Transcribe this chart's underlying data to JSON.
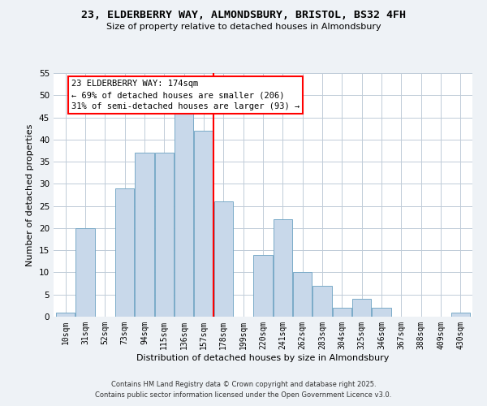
{
  "title": "23, ELDERBERRY WAY, ALMONDSBURY, BRISTOL, BS32 4FH",
  "subtitle": "Size of property relative to detached houses in Almondsbury",
  "xlabel": "Distribution of detached houses by size in Almondsbury",
  "ylabel": "Number of detached properties",
  "bin_labels": [
    "10sqm",
    "31sqm",
    "52sqm",
    "73sqm",
    "94sqm",
    "115sqm",
    "136sqm",
    "157sqm",
    "178sqm",
    "199sqm",
    "220sqm",
    "241sqm",
    "262sqm",
    "283sqm",
    "304sqm",
    "325sqm",
    "346sqm",
    "367sqm",
    "388sqm",
    "409sqm",
    "430sqm"
  ],
  "bar_values": [
    1,
    20,
    0,
    29,
    37,
    37,
    46,
    42,
    26,
    0,
    14,
    22,
    10,
    7,
    2,
    4,
    2,
    0,
    0,
    0,
    1
  ],
  "bar_color": "#c8d8ea",
  "bar_edge_color": "#7aaac8",
  "highlight_line_color": "red",
  "ylim": [
    0,
    55
  ],
  "yticks": [
    0,
    5,
    10,
    15,
    20,
    25,
    30,
    35,
    40,
    45,
    50,
    55
  ],
  "annotation_title": "23 ELDERBERRY WAY: 174sqm",
  "annotation_line1": "← 69% of detached houses are smaller (206)",
  "annotation_line2": "31% of semi-detached houses are larger (93) →",
  "footer_line1": "Contains HM Land Registry data © Crown copyright and database right 2025.",
  "footer_line2": "Contains public sector information licensed under the Open Government Licence v3.0.",
  "background_color": "#eef2f6",
  "plot_bg_color": "#ffffff",
  "grid_color": "#c0ccd8",
  "title_fontsize": 9.5,
  "subtitle_fontsize": 8,
  "annotation_fontsize": 7.5,
  "ylabel_fontsize": 8,
  "xlabel_fontsize": 8,
  "tick_fontsize": 7,
  "footer_fontsize": 6
}
